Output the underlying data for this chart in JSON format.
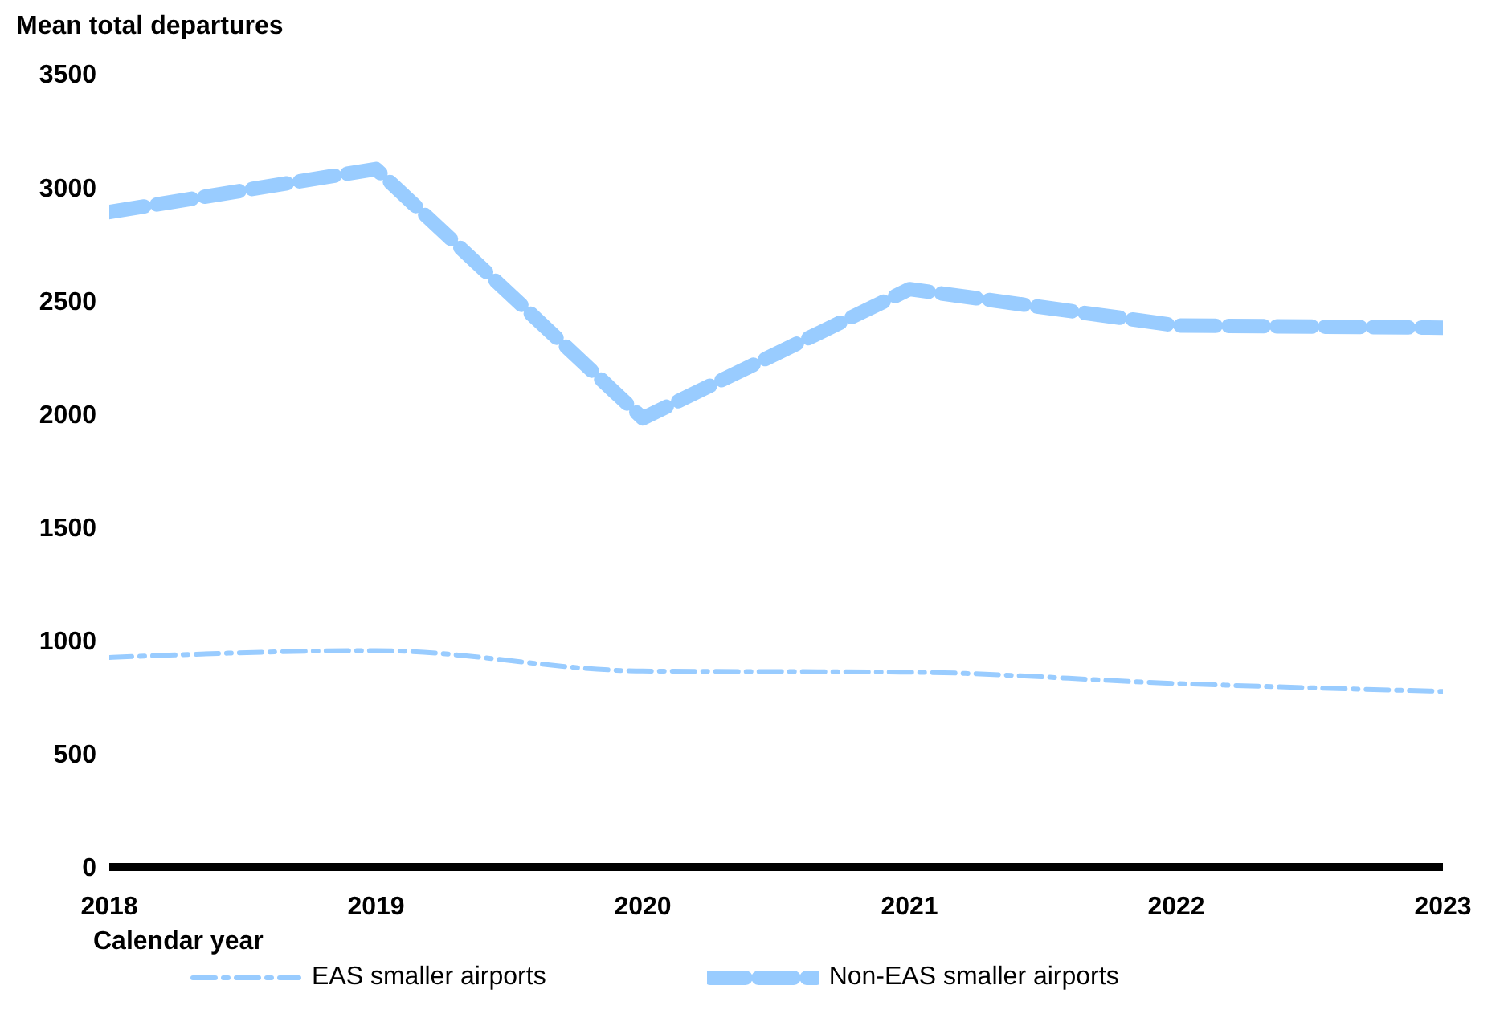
{
  "chart_data": {
    "type": "line",
    "ylabel": "Mean total departures",
    "xlabel": "Calendar year",
    "x": [
      2018,
      2019,
      2020,
      2021,
      2022,
      2023
    ],
    "series": [
      {
        "name": "EAS smaller airports",
        "color": "#99ccff",
        "values": [
          925,
          955,
          865,
          860,
          810,
          775
        ],
        "line_style": "dotted"
      },
      {
        "name": "Non-EAS smaller airports",
        "color": "#99ccff",
        "values": [
          2890,
          3080,
          1980,
          2550,
          2390,
          2380
        ],
        "line_style": "dashed"
      }
    ],
    "xlim": [
      2018,
      2023
    ],
    "xticks": [
      2018,
      2019,
      2020,
      2021,
      2022,
      2023
    ],
    "ylim": [
      0,
      3500
    ],
    "yticks": [
      0,
      500,
      1000,
      1500,
      2000,
      2500,
      3000,
      3500
    ],
    "grid": false,
    "legend": "bottom",
    "marker": "none"
  }
}
